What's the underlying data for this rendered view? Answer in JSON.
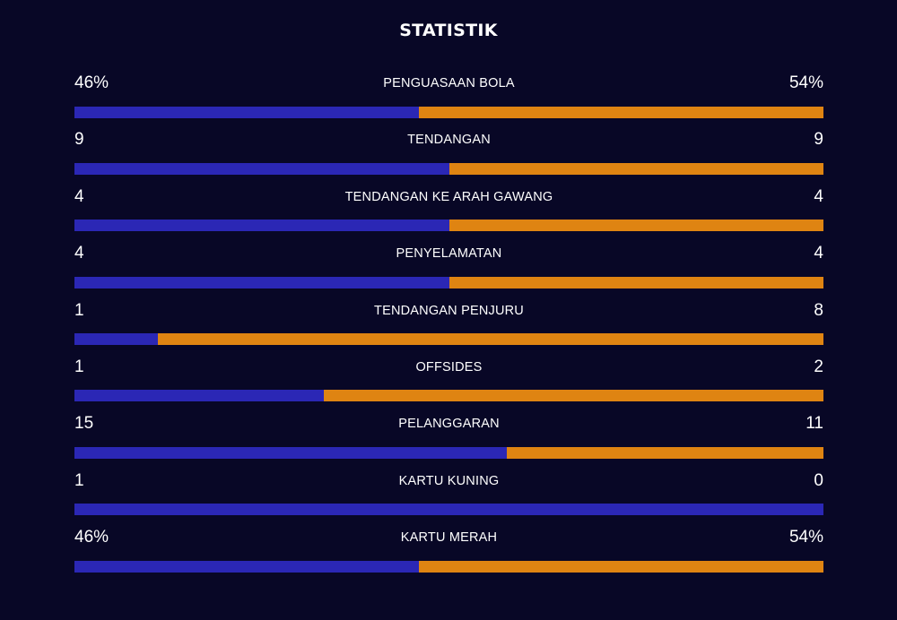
{
  "title": "STATISTIK",
  "colors": {
    "background": "#080726",
    "home": "#2b27b5",
    "away": "#df8412"
  },
  "stats": [
    {
      "label": "PENGUASAAN BOLA",
      "home": "46%",
      "away": "54%",
      "home_share": 0.46
    },
    {
      "label": "TENDANGAN",
      "home": "9",
      "away": "9",
      "home_share": 0.5
    },
    {
      "label": "TENDANGAN KE ARAH GAWANG",
      "home": "4",
      "away": "4",
      "home_share": 0.5
    },
    {
      "label": "PENYELAMATAN",
      "home": "4",
      "away": "4",
      "home_share": 0.5
    },
    {
      "label": "TENDANGAN PENJURU",
      "home": "1",
      "away": "8",
      "home_share": 0.111
    },
    {
      "label": "OFFSIDES",
      "home": "1",
      "away": "2",
      "home_share": 0.333
    },
    {
      "label": "PELANGGARAN",
      "home": "15",
      "away": "11",
      "home_share": 0.577
    },
    {
      "label": "KARTU KUNING",
      "home": "1",
      "away": "0",
      "home_share": 1.0
    },
    {
      "label": "KARTU MERAH",
      "home": "46%",
      "away": "54%",
      "home_share": 0.46
    }
  ]
}
